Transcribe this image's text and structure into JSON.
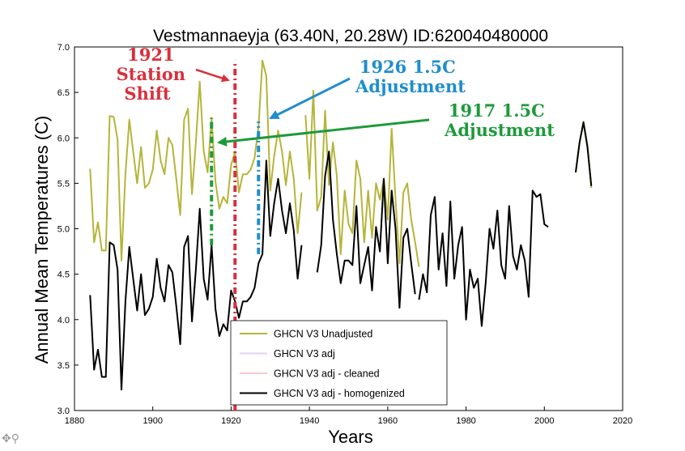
{
  "chart_data": {
    "type": "line",
    "title": "Vestmannaeyja (63.40N, 20.28W) ID:620040480000",
    "xlabel": "Years",
    "ylabel": "Annual Mean Temperatures (C)",
    "xlim": [
      1880,
      2020
    ],
    "ylim": [
      3.0,
      7.0
    ],
    "xticks": [
      "1880",
      "1900",
      "1920",
      "1940",
      "1960",
      "1980",
      "2000",
      "2020"
    ],
    "yticks": [
      "3.0",
      "3.5",
      "4.0",
      "4.5",
      "5.0",
      "5.5",
      "6.0",
      "6.5",
      "7.0"
    ],
    "legend_position": "bottom-center",
    "series": [
      {
        "name": "GHCN V3 Unadjusted",
        "color": "#b5b53a",
        "segments": [
          [
            [
              1884,
              5.66
            ],
            [
              1885,
              4.85
            ],
            [
              1886,
              5.07
            ],
            [
              1887,
              4.76
            ],
            [
              1888,
              4.76
            ],
            [
              1889,
              6.24
            ],
            [
              1890,
              6.23
            ],
            [
              1891,
              5.98
            ],
            [
              1892,
              4.65
            ],
            [
              1893,
              5.6
            ],
            [
              1894,
              6.2
            ],
            [
              1895,
              5.85
            ],
            [
              1896,
              5.5
            ],
            [
              1897,
              5.9
            ],
            [
              1898,
              5.45
            ],
            [
              1899,
              5.5
            ],
            [
              1900,
              5.65
            ],
            [
              1901,
              6.08
            ],
            [
              1902,
              5.75
            ],
            [
              1903,
              5.6
            ],
            [
              1904,
              6.0
            ],
            [
              1905,
              5.92
            ],
            [
              1906,
              5.55
            ],
            [
              1907,
              5.15
            ],
            [
              1908,
              6.2
            ],
            [
              1909,
              6.32
            ],
            [
              1910,
              5.38
            ],
            [
              1911,
              5.95
            ],
            [
              1912,
              6.62
            ],
            [
              1913,
              5.85
            ],
            [
              1914,
              5.62
            ],
            [
              1915,
              6.22
            ],
            [
              1916,
              5.52
            ],
            [
              1917,
              5.22
            ],
            [
              1918,
              5.35
            ],
            [
              1919,
              5.28
            ],
            [
              1920,
              5.7
            ],
            [
              1921,
              5.85
            ],
            [
              1922,
              5.4
            ],
            [
              1923,
              5.6
            ],
            [
              1924,
              5.6
            ],
            [
              1925,
              5.65
            ],
            [
              1926,
              5.78
            ],
            [
              1927,
              6.12
            ],
            [
              1928,
              6.85
            ],
            [
              1929,
              6.68
            ],
            [
              1930,
              5.42
            ],
            [
              1931,
              5.8
            ],
            [
              1932,
              6.08
            ],
            [
              1933,
              5.85
            ],
            [
              1934,
              5.48
            ],
            [
              1935,
              5.85
            ],
            [
              1936,
              5.55
            ],
            [
              1937,
              4.95
            ],
            [
              1938,
              5.4
            ]
          ],
          [
            [
              1939,
              6.25
            ],
            [
              1940,
              5.55
            ],
            [
              1941,
              6.52
            ],
            [
              1942,
              5.2
            ],
            [
              1943,
              5.35
            ],
            [
              1944,
              6.3
            ],
            [
              1945,
              5.48
            ],
            [
              1946,
              5.95
            ],
            [
              1947,
              5.58
            ],
            [
              1948,
              4.72
            ],
            [
              1949,
              5.42
            ],
            [
              1950,
              5.05
            ],
            [
              1951,
              4.95
            ],
            [
              1952,
              5.75
            ],
            [
              1953,
              5.55
            ],
            [
              1954,
              4.85
            ],
            [
              1955,
              5.42
            ],
            [
              1956,
              4.9
            ],
            [
              1957,
              5.5
            ],
            [
              1958,
              5.32
            ],
            [
              1959,
              5.55
            ],
            [
              1960,
              5.1
            ],
            [
              1961,
              6.1
            ],
            [
              1962,
              5.32
            ],
            [
              1963,
              4.62
            ],
            [
              1964,
              5.4
            ],
            [
              1965,
              5.5
            ],
            [
              1966,
              5.1
            ],
            [
              1967,
              4.85
            ],
            [
              1968,
              4.58
            ]
          ],
          [
            [
              2008,
              5.62
            ],
            [
              2009,
              5.95
            ],
            [
              2010,
              6.18
            ],
            [
              2011,
              5.92
            ],
            [
              2012,
              5.45
            ]
          ]
        ]
      },
      {
        "name": "GHCN V3 adj",
        "color": "#e6d3f0",
        "segments": []
      },
      {
        "name": "GHCN V3 adj - cleaned",
        "color": "#f7c9d0",
        "segments": []
      },
      {
        "name": "GHCN V3 adj - homogenized",
        "color": "#000000",
        "segments": [
          [
            [
              1884,
              4.27
            ],
            [
              1885,
              3.45
            ],
            [
              1886,
              3.67
            ],
            [
              1887,
              3.37
            ],
            [
              1888,
              3.37
            ],
            [
              1889,
              4.85
            ],
            [
              1890,
              4.82
            ],
            [
              1891,
              4.55
            ],
            [
              1892,
              3.23
            ],
            [
              1893,
              4.2
            ],
            [
              1894,
              4.8
            ],
            [
              1895,
              4.45
            ],
            [
              1896,
              4.1
            ],
            [
              1897,
              4.5
            ],
            [
              1898,
              4.05
            ],
            [
              1899,
              4.12
            ],
            [
              1900,
              4.25
            ],
            [
              1901,
              4.67
            ],
            [
              1902,
              4.35
            ],
            [
              1903,
              4.2
            ],
            [
              1904,
              4.6
            ],
            [
              1905,
              4.52
            ],
            [
              1906,
              4.15
            ],
            [
              1907,
              3.73
            ],
            [
              1908,
              4.8
            ],
            [
              1909,
              4.92
            ],
            [
              1910,
              3.98
            ],
            [
              1911,
              4.55
            ],
            [
              1912,
              5.22
            ],
            [
              1913,
              4.45
            ],
            [
              1914,
              4.22
            ],
            [
              1915,
              4.82
            ],
            [
              1916,
              4.12
            ],
            [
              1917,
              3.82
            ],
            [
              1918,
              3.95
            ],
            [
              1919,
              3.88
            ],
            [
              1920,
              4.32
            ],
            [
              1921,
              4.2
            ],
            [
              1922,
              4.02
            ],
            [
              1923,
              4.2
            ],
            [
              1924,
              4.2
            ],
            [
              1925,
              4.25
            ],
            [
              1926,
              4.35
            ],
            [
              1927,
              4.62
            ],
            [
              1928,
              4.72
            ],
            [
              1929,
              5.75
            ],
            [
              1930,
              4.92
            ],
            [
              1931,
              5.28
            ],
            [
              1932,
              5.55
            ],
            [
              1933,
              5.2
            ],
            [
              1934,
              4.95
            ],
            [
              1935,
              5.28
            ],
            [
              1936,
              4.98
            ],
            [
              1937,
              4.45
            ],
            [
              1938,
              4.82
            ]
          ],
          [
            [
              1942,
              4.52
            ],
            [
              1943,
              4.82
            ],
            [
              1944,
              5.58
            ],
            [
              1945,
              5.85
            ],
            [
              1946,
              5.1
            ],
            [
              1947,
              4.72
            ],
            [
              1948,
              4.4
            ],
            [
              1949,
              4.65
            ],
            [
              1950,
              4.65
            ],
            [
              1951,
              4.6
            ],
            [
              1952,
              5.25
            ],
            [
              1953,
              4.4
            ],
            [
              1954,
              4.6
            ],
            [
              1955,
              4.8
            ],
            [
              1956,
              4.32
            ],
            [
              1957,
              5.02
            ],
            [
              1958,
              4.75
            ],
            [
              1959,
              5.55
            ],
            [
              1960,
              4.62
            ],
            [
              1961,
              5.42
            ],
            [
              1962,
              5.0
            ],
            [
              1963,
              4.13
            ],
            [
              1964,
              4.9
            ],
            [
              1965,
              5.0
            ],
            [
              1966,
              4.62
            ],
            [
              1967,
              4.28
            ]
          ],
          [
            [
              1968,
              4.22
            ],
            [
              1969,
              4.5
            ],
            [
              1970,
              4.3
            ],
            [
              1971,
              5.15
            ],
            [
              1972,
              5.35
            ],
            [
              1973,
              4.55
            ],
            [
              1974,
              4.95
            ],
            [
              1975,
              4.37
            ],
            [
              1976,
              5.3
            ],
            [
              1977,
              4.45
            ],
            [
              1978,
              4.82
            ],
            [
              1979,
              5.02
            ],
            [
              1980,
              4.0
            ],
            [
              1981,
              4.55
            ],
            [
              1982,
              4.35
            ],
            [
              1983,
              4.45
            ],
            [
              1984,
              3.93
            ],
            [
              1985,
              4.4
            ],
            [
              1986,
              5.0
            ],
            [
              1987,
              4.78
            ],
            [
              1988,
              5.2
            ],
            [
              1989,
              4.6
            ],
            [
              1990,
              4.45
            ],
            [
              1991,
              5.25
            ],
            [
              1992,
              4.7
            ],
            [
              1993,
              4.55
            ],
            [
              1994,
              4.82
            ],
            [
              1995,
              4.65
            ],
            [
              1996,
              4.25
            ],
            [
              1997,
              5.42
            ],
            [
              1998,
              5.35
            ],
            [
              1999,
              5.38
            ],
            [
              2000,
              5.05
            ],
            [
              2001,
              5.02
            ]
          ],
          [
            [
              2008,
              5.62
            ],
            [
              2009,
              5.95
            ],
            [
              2010,
              6.17
            ],
            [
              2011,
              5.9
            ],
            [
              2012,
              5.47
            ]
          ]
        ]
      }
    ],
    "markers": [
      {
        "kind": "vertical-dashed",
        "x": 1921,
        "y1": 3.0,
        "y2": 6.85,
        "color": "#d9303c"
      },
      {
        "kind": "vertical-dashed",
        "x": 1915,
        "y1": 4.82,
        "y2": 6.22,
        "color": "#1e9a3a"
      },
      {
        "kind": "vertical-dashed",
        "x": 1927,
        "y1": 4.72,
        "y2": 6.18,
        "color": "#1f8ecd"
      }
    ],
    "annotations": [
      {
        "lines": [
          "1921",
          "Station",
          "Shift"
        ],
        "color": "#d9303c"
      },
      {
        "lines": [
          "1926 1.5C",
          "Adjustment"
        ],
        "color": "#1f8ecd"
      },
      {
        "lines": [
          "1917 1.5C",
          "Adjustment"
        ],
        "color": "#1e9a3a"
      }
    ]
  },
  "ui": {
    "zoom_icon": "zoom-icon"
  }
}
